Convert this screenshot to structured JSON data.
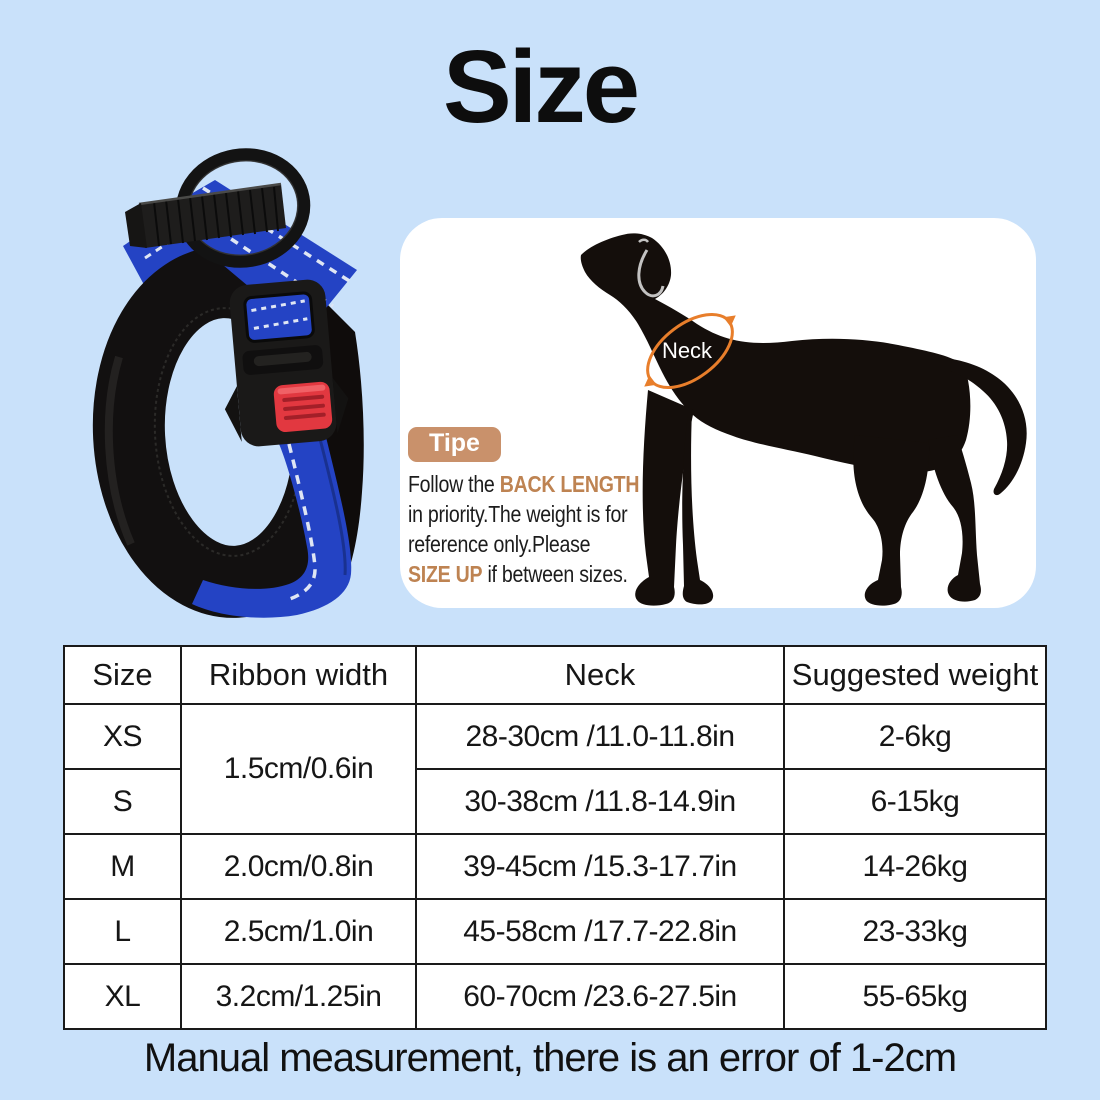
{
  "title": "Size",
  "panel": {
    "badge": "Tipe",
    "neck_label": "Neck",
    "tip_lines": [
      [
        {
          "t": "Follow the ",
          "a": 0
        },
        {
          "t": "BACK LENGTH",
          "a": 1
        }
      ],
      [
        {
          "t": "in priority.The weight is for",
          "a": 0
        }
      ],
      [
        {
          "t": "reference only.Please",
          "a": 0
        }
      ],
      [
        {
          "t": "SIZE UP",
          "a": 1
        },
        {
          "t": " if between sizes.",
          "a": 0
        }
      ]
    ]
  },
  "table": {
    "columns": [
      "Size",
      "Ribbon width",
      "Neck",
      "Suggested weight"
    ],
    "rows": [
      {
        "size": "XS",
        "ribbon": "1.5cm/0.6in",
        "ribbon_rowspan": 2,
        "neck": "28-30cm /11.0-11.8in",
        "weight": "2-6kg"
      },
      {
        "size": "S",
        "neck": "30-38cm /11.8-14.9in",
        "weight": "6-15kg"
      },
      {
        "size": "M",
        "ribbon": "2.0cm/0.8in",
        "neck": "39-45cm /15.3-17.7in",
        "weight": "14-26kg"
      },
      {
        "size": "L",
        "ribbon": "2.5cm/1.0in",
        "neck": "45-58cm /17.7-22.8in",
        "weight": "23-33kg"
      },
      {
        "size": "XL",
        "ribbon": "3.2cm/1.25in",
        "neck": "60-70cm /23.6-27.5in",
        "weight": "55-65kg"
      }
    ]
  },
  "footer": "Manual measurement, there is an error of 1-2cm",
  "colors": {
    "background": "#C9E1FA",
    "panel": "#FFFFFF",
    "badge_bg": "#C9916B",
    "accent_text": "#BE8352",
    "measure_orange": "#E87E2B",
    "collar_blue": "#2443C4",
    "buckle_red": "#E23840",
    "text": "#111111"
  }
}
